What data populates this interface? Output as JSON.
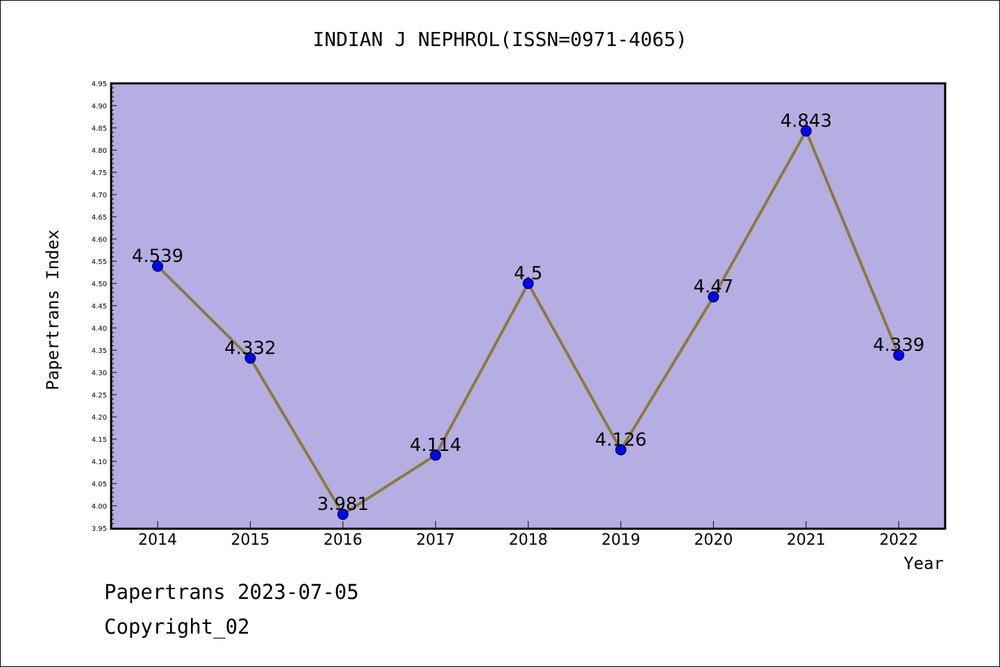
{
  "chart_data": {
    "type": "line",
    "title": "INDIAN J NEPHROL(ISSN=0971-4065)",
    "xlabel": "Year",
    "ylabel": "Papertrans Index",
    "categories": [
      "2014",
      "2015",
      "2016",
      "2017",
      "2018",
      "2019",
      "2020",
      "2021",
      "2022"
    ],
    "values": [
      4.539,
      4.332,
      3.981,
      4.114,
      4.5,
      4.126,
      4.47,
      4.843,
      4.339
    ],
    "data_labels": [
      "4.539",
      "4.332",
      "3.981",
      "4.114",
      "4.5",
      "4.126",
      "4.47",
      "4.843",
      "4.339"
    ],
    "ylim": [
      3.95,
      4.95
    ],
    "yticks": [
      "3.95",
      "4.00",
      "4.05",
      "4.10",
      "4.15",
      "4.20",
      "4.25",
      "4.30",
      "4.35",
      "4.40",
      "4.45",
      "4.50",
      "4.55",
      "4.60",
      "4.65",
      "4.70",
      "4.75",
      "4.80",
      "4.85",
      "4.90",
      "4.95"
    ],
    "grid": false,
    "colors": {
      "plot_background": "#b4aee2",
      "line": "#8b7a3a",
      "marker": "#0000ff"
    }
  },
  "footer": {
    "line1": "Papertrans 2023-07-05",
    "line2": "Copyright_02"
  }
}
